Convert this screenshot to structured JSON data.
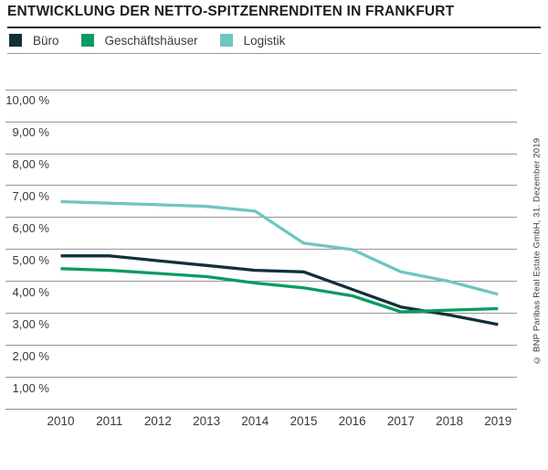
{
  "title": "ENTWICKLUNG DER NETTO-SPITZENRENDITEN IN FRANKFURT",
  "copyright": "© BNP Paribas Real Estate GmbH, 31. Dezember 2019",
  "colors": {
    "buero": "#12303a",
    "geschaeftshaeuser": "#0a9c60",
    "logistik": "#6ec6bf",
    "grid": "#969696",
    "axis_text": "#3a3a3a",
    "title_text": "#1d1d1b"
  },
  "legend": [
    {
      "label": "Büro",
      "color": "#12303a"
    },
    {
      "label": "Geschäftshäuser",
      "color": "#0a9c60"
    },
    {
      "label": "Logistik",
      "color": "#6ec6bf"
    }
  ],
  "chart_data": {
    "type": "line",
    "categories": [
      "2010",
      "2011",
      "2012",
      "2013",
      "2014",
      "2015",
      "2016",
      "2017",
      "2018",
      "2019"
    ],
    "series": [
      {
        "name": "Büro",
        "color": "#12303a",
        "values": [
          4.8,
          4.8,
          4.65,
          4.5,
          4.35,
          4.3,
          3.75,
          3.2,
          2.95,
          2.65
        ]
      },
      {
        "name": "Geschäftshäuser",
        "color": "#0a9c60",
        "values": [
          4.4,
          4.35,
          4.25,
          4.15,
          3.95,
          3.8,
          3.55,
          3.05,
          3.1,
          3.15
        ]
      },
      {
        "name": "Logistik",
        "color": "#6ec6bf",
        "values": [
          6.5,
          6.45,
          6.4,
          6.35,
          6.2,
          5.2,
          5.0,
          4.3,
          4.0,
          3.6
        ]
      }
    ],
    "y_ticks": [
      "10,00 %",
      "9,00 %",
      "8,00 %",
      "7,00 %",
      "6,00 %",
      "5,00 %",
      "4,00 %",
      "3,00 %",
      "2,00 %",
      "1,00 %"
    ],
    "ylabel": "",
    "xlabel": "",
    "ylim": [
      0,
      10
    ],
    "y_step": 1,
    "grid": true,
    "legend_position": "top-left"
  }
}
